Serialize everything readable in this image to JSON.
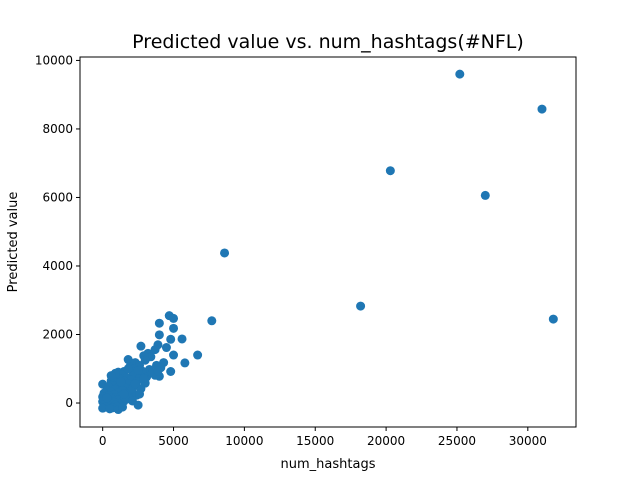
{
  "chart_data": {
    "type": "scatter",
    "title": "Predicted value vs. num_hashtags(#NFL)",
    "xlabel": "num_hashtags",
    "ylabel": "Predicted value",
    "xlim": [
      -1600,
      33400
    ],
    "ylim": [
      -700,
      10100
    ],
    "xticks": [
      0,
      5000,
      10000,
      15000,
      20000,
      25000,
      30000
    ],
    "xtick_labels": [
      "0",
      "5000",
      "10000",
      "15000",
      "20000",
      "25000",
      "30000"
    ],
    "yticks": [
      0,
      2000,
      4000,
      6000,
      8000,
      10000
    ],
    "ytick_labels": [
      "0",
      "2000",
      "4000",
      "6000",
      "8000",
      "10000"
    ],
    "grid": false,
    "legend": "none",
    "marker_color": "#1f77b4",
    "points": [
      [
        25200,
        9600
      ],
      [
        31000,
        8580
      ],
      [
        20300,
        6780
      ],
      [
        27000,
        6060
      ],
      [
        8600,
        4380
      ],
      [
        18200,
        2830
      ],
      [
        31800,
        2450
      ],
      [
        7700,
        2400
      ],
      [
        4700,
        2550
      ],
      [
        5000,
        2470
      ],
      [
        4000,
        2330
      ],
      [
        5000,
        2180
      ],
      [
        4000,
        1990
      ],
      [
        4800,
        1860
      ],
      [
        5600,
        1870
      ],
      [
        3900,
        1700
      ],
      [
        2700,
        1660
      ],
      [
        4500,
        1620
      ],
      [
        3700,
        1560
      ],
      [
        6700,
        1400
      ],
      [
        5000,
        1400
      ],
      [
        3200,
        1450
      ],
      [
        3400,
        1350
      ],
      [
        2900,
        1380
      ],
      [
        1800,
        1270
      ],
      [
        3000,
        1250
      ],
      [
        2300,
        1180
      ],
      [
        5800,
        1170
      ],
      [
        4300,
        1180
      ],
      [
        2600,
        1100
      ],
      [
        3800,
        1100
      ],
      [
        4100,
        1030
      ],
      [
        1900,
        1050
      ],
      [
        2200,
        1000
      ],
      [
        3300,
        980
      ],
      [
        2800,
        930
      ],
      [
        4800,
        920
      ],
      [
        1500,
        920
      ],
      [
        1100,
        900
      ],
      [
        2500,
        860
      ],
      [
        3700,
        810
      ],
      [
        4000,
        780
      ],
      [
        1400,
        820
      ],
      [
        2100,
        800
      ],
      [
        900,
        780
      ],
      [
        3100,
        760
      ],
      [
        1700,
        740
      ],
      [
        2600,
        720
      ],
      [
        1200,
        700
      ],
      [
        2000,
        680
      ],
      [
        600,
        650
      ],
      [
        1500,
        640
      ],
      [
        2400,
        620
      ],
      [
        1000,
        600
      ],
      [
        3000,
        580
      ],
      [
        1800,
        560
      ],
      [
        0,
        550
      ],
      [
        700,
        530
      ],
      [
        1300,
        520
      ],
      [
        2200,
        500
      ],
      [
        400,
        480
      ],
      [
        1100,
        460
      ],
      [
        1600,
        440
      ],
      [
        2700,
        420
      ],
      [
        900,
        400
      ],
      [
        300,
        380
      ],
      [
        1400,
        370
      ],
      [
        2000,
        340
      ],
      [
        600,
        320
      ],
      [
        1100,
        300
      ],
      [
        100,
        290
      ],
      [
        1700,
        270
      ],
      [
        800,
        250
      ],
      [
        2400,
        230
      ],
      [
        400,
        220
      ],
      [
        1300,
        200
      ],
      [
        0,
        180
      ],
      [
        900,
        160
      ],
      [
        600,
        140
      ],
      [
        1900,
        120
      ],
      [
        200,
        100
      ],
      [
        1100,
        90
      ],
      [
        500,
        70
      ],
      [
        1500,
        50
      ],
      [
        0,
        40
      ],
      [
        800,
        20
      ],
      [
        300,
        0
      ],
      [
        1200,
        -10
      ],
      [
        600,
        -30
      ],
      [
        100,
        -40
      ],
      [
        900,
        -60
      ],
      [
        400,
        -80
      ],
      [
        1000,
        -100
      ],
      [
        200,
        -120
      ],
      [
        700,
        -140
      ],
      [
        0,
        -150
      ],
      [
        500,
        -170
      ],
      [
        1100,
        -190
      ],
      [
        300,
        150
      ],
      [
        1600,
        150
      ],
      [
        2100,
        420
      ],
      [
        2900,
        720
      ],
      [
        1300,
        620
      ],
      [
        700,
        760
      ],
      [
        1800,
        1000
      ],
      [
        2500,
        950
      ],
      [
        2300,
        560
      ],
      [
        1500,
        260
      ],
      [
        2100,
        60
      ],
      [
        2500,
        -60
      ],
      [
        1400,
        -120
      ],
      [
        2600,
        260
      ],
      [
        3500,
        880
      ],
      [
        3900,
        940
      ],
      [
        900,
        870
      ],
      [
        600,
        800
      ]
    ]
  }
}
